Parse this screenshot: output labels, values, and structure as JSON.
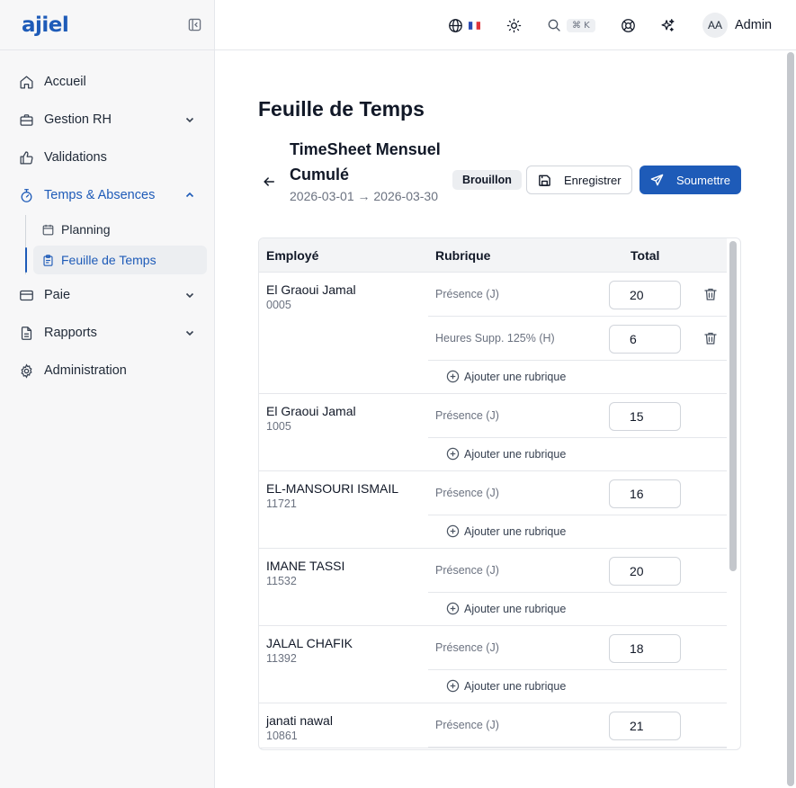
{
  "brand": {
    "logo": "ajiel"
  },
  "sidebar": {
    "items": [
      {
        "label": "Accueil",
        "icon": "home-icon"
      },
      {
        "label": "Gestion RH",
        "icon": "briefcase-icon"
      },
      {
        "label": "Validations",
        "icon": "thumbs-up-icon"
      },
      {
        "label": "Temps & Absences",
        "icon": "stopwatch-icon"
      },
      {
        "label": "Paie",
        "icon": "card-icon"
      },
      {
        "label": "Rapports",
        "icon": "file-icon"
      },
      {
        "label": "Administration",
        "icon": "gear-icon"
      }
    ],
    "subitems": [
      {
        "label": "Planning",
        "icon": "calendar-icon"
      },
      {
        "label": "Feuille de Temps",
        "icon": "clipboard-icon"
      }
    ]
  },
  "topbar": {
    "language_flag": "🇫🇷",
    "shortcut": "⌘ K",
    "avatar_initials": "AA",
    "user_name": "Admin"
  },
  "page": {
    "title": "Feuille de Temps",
    "timesheet_title": "TimeSheet Mensuel Cumulé",
    "period": "2026-03-01 → 2026-03-30",
    "status_badge": "Brouillon",
    "save_label": "Enregistrer",
    "submit_label": "Soumettre"
  },
  "table": {
    "headers": {
      "employee": "Employé",
      "rubric": "Rubrique",
      "total": "Total"
    },
    "add_rubric_label": "Ajouter une rubrique",
    "employees": [
      {
        "name": "El Graoui Jamal",
        "code": "0005",
        "rows": [
          {
            "rubric": "Présence (J)",
            "total": "20",
            "deletable": true
          },
          {
            "rubric": "Heures Supp. 125% (H)",
            "total": "6",
            "deletable": true
          }
        ]
      },
      {
        "name": "El Graoui Jamal",
        "code": "1005",
        "rows": [
          {
            "rubric": "Présence (J)",
            "total": "15",
            "deletable": false
          }
        ]
      },
      {
        "name": "EL-MANSOURI ISMAIL",
        "code": "11721",
        "rows": [
          {
            "rubric": "Présence (J)",
            "total": "16",
            "deletable": false
          }
        ]
      },
      {
        "name": "IMANE TASSI",
        "code": "11532",
        "rows": [
          {
            "rubric": "Présence (J)",
            "total": "20",
            "deletable": false
          }
        ]
      },
      {
        "name": "JALAL CHAFIK",
        "code": "11392",
        "rows": [
          {
            "rubric": "Présence (J)",
            "total": "18",
            "deletable": false
          }
        ]
      },
      {
        "name": "janati nawal",
        "code": "10861",
        "rows": [
          {
            "rubric": "Présence (J)",
            "total": "21",
            "deletable": false
          }
        ]
      }
    ]
  },
  "colors": {
    "accent": "#1e5bb8",
    "sidebar_bg": "#f7f7f8",
    "border": "#e5e7eb",
    "muted_text": "#6b7280"
  }
}
